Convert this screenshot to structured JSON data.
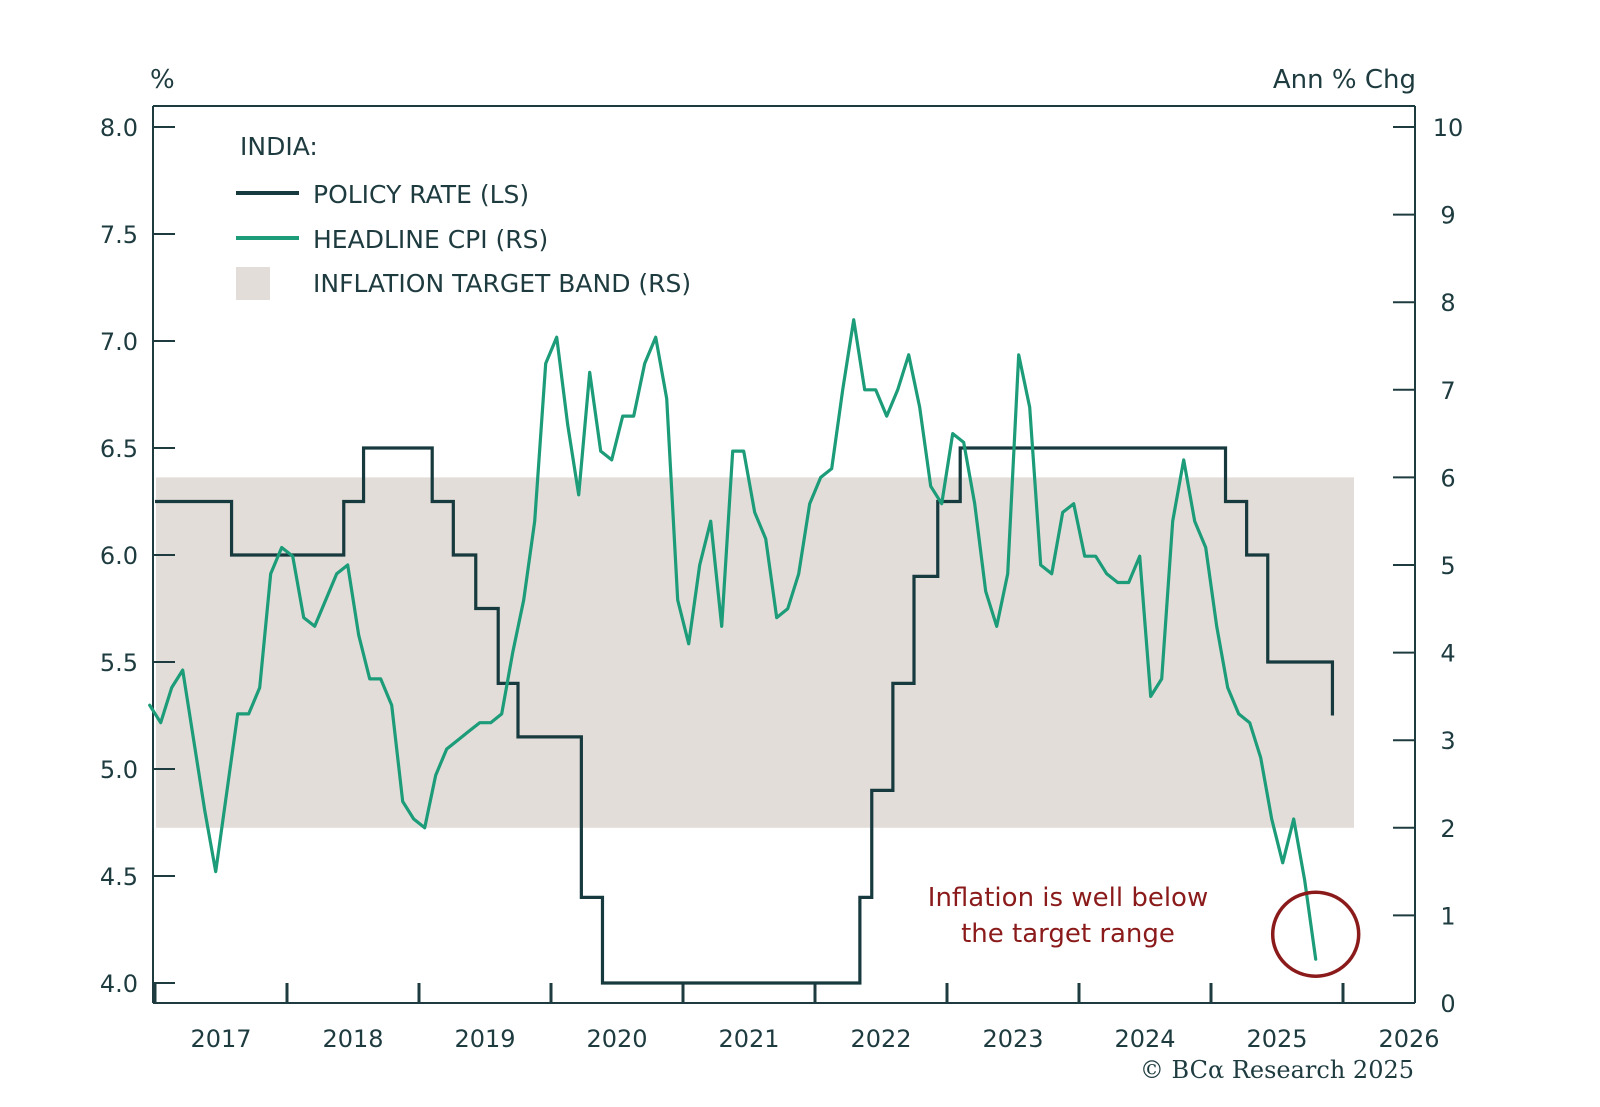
{
  "chart_data": {
    "type": "line",
    "title": "",
    "legend_title": "INDIA:",
    "legend_placement": "top-left",
    "left_axis": {
      "label": "%",
      "range": [
        4.0,
        8.0
      ],
      "ticks": [
        "4.0",
        "4.5",
        "5.0",
        "5.5",
        "6.0",
        "6.5",
        "7.0",
        "7.5",
        "8.0"
      ]
    },
    "right_axis": {
      "label": "Ann % Chg",
      "range": [
        0,
        10
      ],
      "ticks": [
        "0",
        "1",
        "2",
        "3",
        "4",
        "5",
        "6",
        "7",
        "8",
        "9",
        "10"
      ]
    },
    "x_axis": {
      "range": [
        2017.0,
        2026.5
      ],
      "tick_labels": [
        "2017",
        "2018",
        "2019",
        "2020",
        "2021",
        "2022",
        "2023",
        "2024",
        "2025",
        "2026"
      ]
    },
    "grid": false,
    "series": [
      {
        "name": "POLICY RATE (LS)",
        "axis": "left",
        "style": "step",
        "color": "#173a3e",
        "steps": [
          {
            "from": 2017.0,
            "value": 6.25
          },
          {
            "from": 2017.58,
            "value": 6.0
          },
          {
            "from": 2018.43,
            "value": 6.25
          },
          {
            "from": 2018.58,
            "value": 6.5
          },
          {
            "from": 2019.1,
            "value": 6.25
          },
          {
            "from": 2019.26,
            "value": 6.0
          },
          {
            "from": 2019.43,
            "value": 5.75
          },
          {
            "from": 2019.6,
            "value": 5.4
          },
          {
            "from": 2019.75,
            "value": 5.15
          },
          {
            "from": 2020.23,
            "value": 4.4
          },
          {
            "from": 2020.39,
            "value": 4.0
          },
          {
            "from": 2022.34,
            "value": 4.4
          },
          {
            "from": 2022.43,
            "value": 4.9
          },
          {
            "from": 2022.59,
            "value": 5.4
          },
          {
            "from": 2022.75,
            "value": 5.9
          },
          {
            "from": 2022.93,
            "value": 6.25
          },
          {
            "from": 2023.1,
            "value": 6.5
          },
          {
            "from": 2025.11,
            "value": 6.25
          },
          {
            "from": 2025.27,
            "value": 6.0
          },
          {
            "from": 2025.43,
            "value": 5.5
          },
          {
            "from": 2025.92,
            "value": 5.25
          }
        ],
        "end": 2025.92
      },
      {
        "name": "HEADLINE CPI (RS)",
        "axis": "right",
        "style": "line",
        "color": "#1c9c79",
        "start_month": "2016-12",
        "frequency": "monthly",
        "values": [
          3.4,
          3.2,
          3.6,
          3.8,
          3.0,
          2.2,
          1.5,
          2.4,
          3.3,
          3.3,
          3.6,
          4.9,
          5.2,
          5.1,
          4.4,
          4.3,
          4.6,
          4.9,
          5.0,
          4.2,
          3.7,
          3.7,
          3.4,
          2.3,
          2.1,
          2.0,
          2.6,
          2.9,
          3.0,
          3.1,
          3.2,
          3.2,
          3.3,
          4.0,
          4.6,
          5.5,
          7.3,
          7.6,
          6.6,
          5.8,
          7.2,
          6.3,
          6.2,
          6.7,
          6.7,
          7.3,
          7.6,
          6.9,
          4.6,
          4.1,
          5.0,
          5.5,
          4.3,
          6.3,
          6.3,
          5.6,
          5.3,
          4.4,
          4.5,
          4.9,
          5.7,
          6.0,
          6.1,
          7.0,
          7.8,
          7.0,
          7.0,
          6.7,
          7.0,
          7.4,
          6.8,
          5.9,
          5.7,
          6.5,
          6.4,
          5.7,
          4.7,
          4.3,
          4.9,
          7.4,
          6.8,
          5.0,
          4.9,
          5.6,
          5.7,
          5.1,
          5.1,
          4.9,
          4.8,
          4.8,
          5.1,
          3.5,
          3.7,
          5.5,
          6.2,
          5.5,
          5.2,
          4.3,
          3.6,
          3.3,
          3.2,
          2.8,
          2.1,
          1.6,
          2.1,
          1.4,
          0.5
        ]
      },
      {
        "name": "INFLATION TARGET BAND (RS)",
        "axis": "right",
        "style": "band",
        "color": "#e2ddd9",
        "range": [
          2,
          6
        ]
      }
    ],
    "annotations": [
      {
        "text_lines": [
          "Inflation is well below",
          "the target range"
        ],
        "color": "#8b1b1b"
      },
      {
        "shape": "circle",
        "around": "latest HEADLINE CPI value",
        "color": "#8b1b1b"
      }
    ],
    "source": "© BCα Research 2025"
  }
}
